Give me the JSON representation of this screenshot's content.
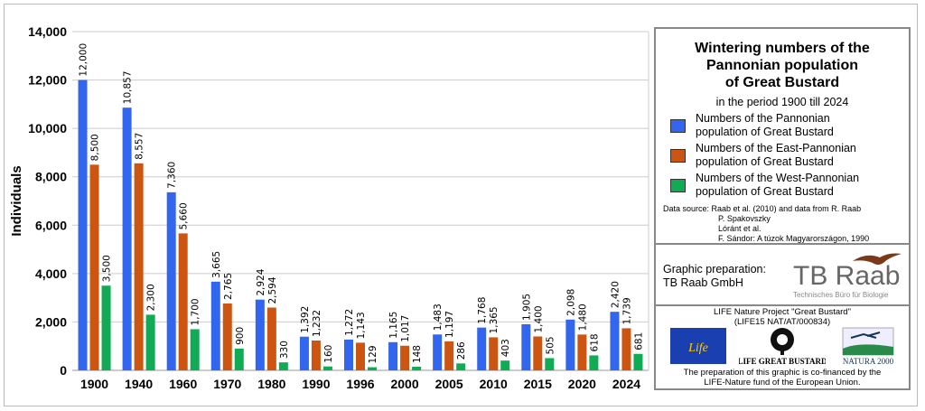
{
  "chart_data": {
    "type": "bar",
    "ylabel": "Individuals",
    "xlabel": "",
    "ylim": [
      0,
      14000
    ],
    "yticks": [
      "0",
      "2,000",
      "4,000",
      "6,000",
      "8,000",
      "10,000",
      "12,000",
      "14,000"
    ],
    "grid": true,
    "legend_position": "right",
    "categories": [
      "1900",
      "1940",
      "1960",
      "1970",
      "1980",
      "1990",
      "1996",
      "2000",
      "2005",
      "2010",
      "2015",
      "2020",
      "2024"
    ],
    "series": [
      {
        "name": "Numbers of the Pannonian population of Great Bustard",
        "color": "#3366ee",
        "values": [
          12000,
          10857,
          7360,
          3665,
          2924,
          1392,
          1272,
          1165,
          1483,
          1768,
          1905,
          2098,
          2420
        ],
        "labels": [
          "12,000",
          "10,857",
          "7,360",
          "3,665",
          "2,924",
          "1,392",
          "1,272",
          "1,165",
          "1,483",
          "1,768",
          "1,905",
          "2,098",
          "2,420"
        ]
      },
      {
        "name": "Numbers of the East-Pannonian population of Great Bustard",
        "color": "#cc5511",
        "values": [
          8500,
          8557,
          5660,
          2765,
          2594,
          1232,
          1143,
          1017,
          1197,
          1365,
          1400,
          1480,
          1739
        ],
        "labels": [
          "8,500",
          "8,557",
          "5,660",
          "2,765",
          "2,594",
          "1,232",
          "1,143",
          "1,017",
          "1,197",
          "1,365",
          "1,400",
          "1,480",
          "1,739"
        ]
      },
      {
        "name": "Numbers of the West-Pannonian population of Great Bustard",
        "color": "#11aa55",
        "values": [
          3500,
          2300,
          1700,
          900,
          330,
          160,
          129,
          148,
          286,
          403,
          505,
          618,
          681
        ],
        "labels": [
          "3,500",
          "2,300",
          "1,700",
          "900",
          "330",
          "160",
          "129",
          "148",
          "286",
          "403",
          "505",
          "618",
          "681"
        ]
      }
    ]
  },
  "legend": {
    "title_lines": [
      "Wintering numbers of the",
      "Pannonian population",
      "of Great Bustard"
    ],
    "subtitle": "in the period 1900 till 2024",
    "items": [
      {
        "line1": "Numbers of the Pannonian",
        "line2": "population of Great Bustard"
      },
      {
        "line1": "Numbers of the East-Pannonian",
        "line2": "population of Great Bustard"
      },
      {
        "line1": "Numbers of the West-Pannonian",
        "line2": "population of Great Bustard"
      }
    ],
    "source_lines": [
      "Data source: Raab et al. (2010) and data from R. Raab",
      "P. Spakovszky",
      "Lóránt et al.",
      "F. Sándor: A túzok Magyarországon, 1990"
    ]
  },
  "credits": {
    "prep_line1": "Graphic preparation:",
    "prep_line2": "TB Raab GmbH",
    "logo_text": "TB Raab",
    "logo_sub": "Technisches Büro für Biologie"
  },
  "life": {
    "line1": "LIFE Nature Project \"Great Bustard\"",
    "line2": "(LIFE15 NAT/AT/000834)",
    "life_logo_text": "Life",
    "gb_logo_text": "LIFE GREAT BUSTARD",
    "natura_text": "NATURA 2000",
    "foot1": "The preparation of this graphic is co-financed by the",
    "foot2": "LIFE-Nature fund of the European Union."
  }
}
